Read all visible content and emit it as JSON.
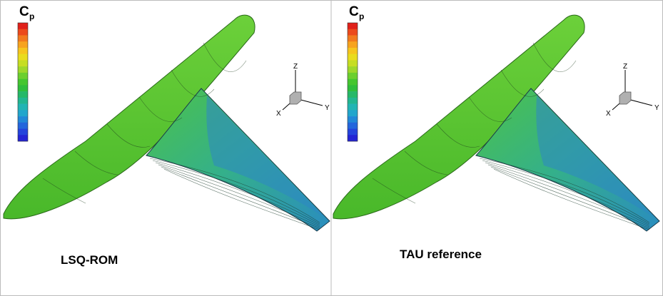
{
  "panels": [
    {
      "colorbar_label": "C",
      "colorbar_subscript": "p",
      "axes": {
        "z": "Z",
        "y": "Y",
        "x": "X"
      },
      "caption": "LSQ-ROM"
    },
    {
      "colorbar_label": "C",
      "colorbar_subscript": "p",
      "axes": {
        "z": "Z",
        "y": "Y",
        "x": "X"
      },
      "caption": "TAU reference"
    }
  ]
}
